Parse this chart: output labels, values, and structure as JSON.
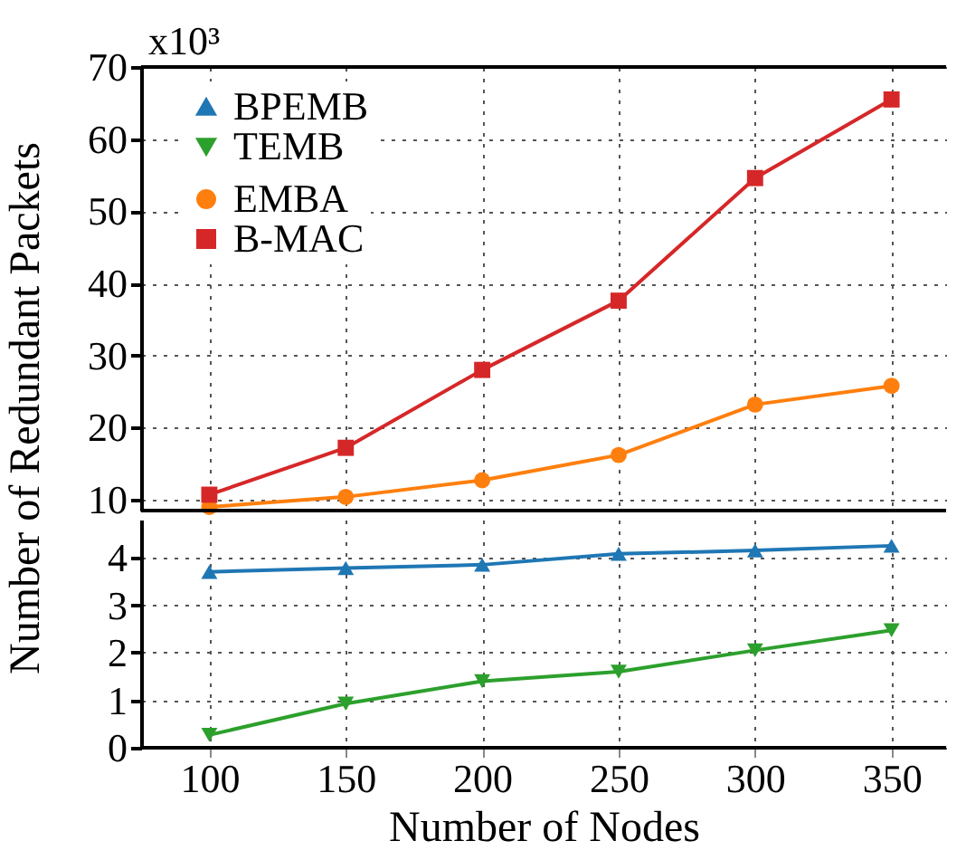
{
  "chart_data": [
    {
      "type": "line",
      "ylabel": "Number of Redundant Packets",
      "annotations": [
        "x10³"
      ],
      "x": [
        100,
        150,
        200,
        250,
        300,
        350
      ],
      "xlim": [
        75,
        370
      ],
      "xticks": [
        100,
        150,
        200,
        250,
        300,
        350
      ],
      "ylim": [
        8.5,
        70
      ],
      "yticks": [
        10,
        20,
        30,
        40,
        50,
        60,
        70
      ],
      "grid": true,
      "legend": "top left",
      "tick_labels": "y",
      "line_style": "solid",
      "series": [
        {
          "name": "EMBA",
          "color": "#ff7f0e",
          "marker": "circle",
          "values": [
            9.0,
            10.4,
            12.7,
            16.2,
            23.2,
            25.8
          ]
        },
        {
          "name": "B-MAC",
          "color": "#d62728",
          "marker": "square",
          "values": [
            10.7,
            17.2,
            28.0,
            37.6,
            54.6,
            65.5
          ]
        }
      ]
    },
    {
      "type": "line",
      "xlabel": "Number of Nodes",
      "x": [
        100,
        150,
        200,
        250,
        300,
        350
      ],
      "xlim": [
        75,
        370
      ],
      "xticks": [
        100,
        150,
        200,
        250,
        300,
        350
      ],
      "ylim": [
        0,
        4.8
      ],
      "yticks": [
        0,
        1,
        2,
        3,
        4
      ],
      "grid": true,
      "legend": "top left",
      "line_style": "solid",
      "series": [
        {
          "name": "BPEMB",
          "color": "#1f77b4",
          "marker": "triangle",
          "values": [
            3.7,
            3.78,
            3.85,
            4.08,
            4.15,
            4.25
          ]
        },
        {
          "name": "TEMB",
          "color": "#2ca02c",
          "marker": "triangle-down",
          "values": [
            0.27,
            0.93,
            1.4,
            1.6,
            2.05,
            2.47
          ]
        }
      ]
    }
  ]
}
